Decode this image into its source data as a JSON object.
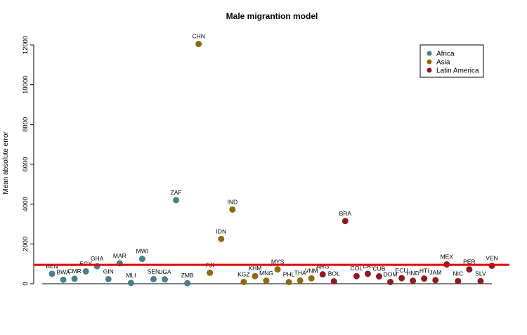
{
  "chart_data": {
    "type": "scatter",
    "title": "Male migrantion model",
    "xlabel": "",
    "ylabel": "Mean absolute error",
    "ylim": [
      0,
      12000
    ],
    "yticks": [
      0,
      2000,
      4000,
      6000,
      8000,
      10000,
      12000
    ],
    "grid": false,
    "legend_position": "top-right",
    "reference_line": {
      "y": 950,
      "color": "#e00000"
    },
    "series": [
      {
        "name": "Africa",
        "color": "#4a7f86",
        "points": [
          {
            "label": "BEN",
            "y": 500
          },
          {
            "label": "BWA",
            "y": 200
          },
          {
            "label": "CMR",
            "y": 250
          },
          {
            "label": "EGY",
            "y": 620
          },
          {
            "label": "GHA",
            "y": 880
          },
          {
            "label": "GIN",
            "y": 230
          },
          {
            "label": "MAR",
            "y": 1030
          },
          {
            "label": "MLI",
            "y": 40
          },
          {
            "label": "MWI",
            "y": 1250
          },
          {
            "label": "SEN",
            "y": 230
          },
          {
            "label": "UGA",
            "y": 220
          },
          {
            "label": "ZAF",
            "y": 4200
          },
          {
            "label": "ZMB",
            "y": 30
          }
        ]
      },
      {
        "name": "Asia",
        "color": "#8b6a10",
        "points": [
          {
            "label": "CHN",
            "y": 12050
          },
          {
            "label": "FJI",
            "y": 550
          },
          {
            "label": "IDN",
            "y": 2250
          },
          {
            "label": "IND",
            "y": 3730
          },
          {
            "label": "KGZ",
            "y": 90
          },
          {
            "label": "KHM",
            "y": 380
          },
          {
            "label": "MNG",
            "y": 150
          },
          {
            "label": "MYS",
            "y": 720
          },
          {
            "label": "PHL",
            "y": 80
          },
          {
            "label": "THA",
            "y": 160
          },
          {
            "label": "VNM",
            "y": 270
          }
        ]
      },
      {
        "name": "Latin America",
        "color": "#8b1c24",
        "points": [
          {
            "label": "ARG",
            "y": 470
          },
          {
            "label": "BOL",
            "y": 120
          },
          {
            "label": "BRA",
            "y": 3150
          },
          {
            "label": "COL",
            "y": 380
          },
          {
            "label": "CRI",
            "y": 500
          },
          {
            "label": "CUB",
            "y": 370
          },
          {
            "label": "DOM",
            "y": 90
          },
          {
            "label": "ECU",
            "y": 280
          },
          {
            "label": "HND",
            "y": 150
          },
          {
            "label": "HTI",
            "y": 260
          },
          {
            "label": "JAM",
            "y": 180
          },
          {
            "label": "MEX",
            "y": 970
          },
          {
            "label": "NIC",
            "y": 130
          },
          {
            "label": "PER",
            "y": 720
          },
          {
            "label": "SLV",
            "y": 130
          },
          {
            "label": "VEN",
            "y": 900
          }
        ]
      }
    ]
  }
}
